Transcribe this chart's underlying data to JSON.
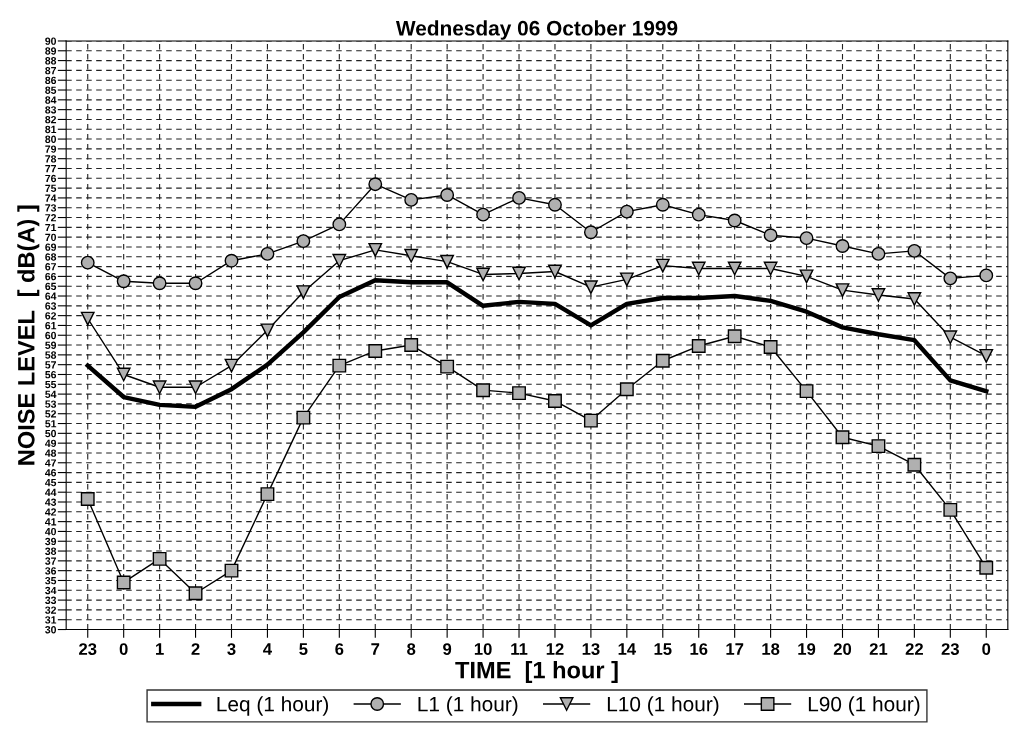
{
  "chart_data": {
    "type": "line",
    "title": "Wednesday 06 October 1999",
    "xlabel": "TIME  [1 hour ]",
    "ylabel": "NOISE LEVEL  [ dB(A) ]",
    "categories": [
      "23",
      "0",
      "1",
      "2",
      "3",
      "4",
      "5",
      "6",
      "7",
      "8",
      "9",
      "10",
      "11",
      "12",
      "13",
      "14",
      "15",
      "16",
      "17",
      "18",
      "19",
      "20",
      "21",
      "22",
      "23",
      "0"
    ],
    "series": [
      {
        "name": "Leq (1 hour)",
        "color": "#000000",
        "marker": "none",
        "values": [
          56.9,
          53.7,
          52.9,
          52.7,
          54.5,
          57.0,
          60.3,
          63.9,
          65.6,
          65.4,
          65.4,
          63.0,
          63.4,
          63.2,
          61.0,
          63.2,
          63.8,
          63.8,
          64.0,
          63.5,
          62.4,
          60.8,
          60.1,
          59.5,
          55.4,
          54.3
        ]
      },
      {
        "name": "L1 (1 hour)",
        "color": "#000000",
        "marker": "circle",
        "values": [
          67.4,
          65.5,
          65.3,
          65.3,
          67.6,
          68.3,
          69.6,
          71.3,
          75.4,
          73.8,
          74.3,
          72.3,
          74.0,
          73.3,
          70.5,
          72.6,
          73.3,
          72.3,
          71.7,
          70.2,
          69.9,
          69.1,
          68.3,
          68.6,
          65.8,
          66.1
        ]
      },
      {
        "name": "L10 (1 hour)",
        "color": "#000000",
        "marker": "triangle",
        "values": [
          61.7,
          56.0,
          54.7,
          54.7,
          56.9,
          60.5,
          64.4,
          67.6,
          68.7,
          68.1,
          67.5,
          66.2,
          66.3,
          66.5,
          64.9,
          65.7,
          67.1,
          66.8,
          66.8,
          66.8,
          66.0,
          64.6,
          64.1,
          63.7,
          59.8,
          57.9
        ]
      },
      {
        "name": "L90 (1 hour)",
        "color": "#000000",
        "marker": "square",
        "values": [
          43.3,
          34.8,
          37.2,
          33.7,
          36.0,
          43.8,
          51.6,
          56.9,
          58.4,
          59.0,
          56.8,
          54.4,
          54.1,
          53.3,
          51.3,
          54.5,
          57.4,
          58.9,
          59.9,
          58.8,
          54.3,
          49.6,
          48.7,
          46.8,
          42.2,
          36.3
        ]
      }
    ],
    "ylim": [
      30,
      90
    ],
    "yticks": [
      30,
      31,
      32,
      33,
      34,
      35,
      36,
      37,
      38,
      39,
      40,
      41,
      42,
      43,
      44,
      45,
      46,
      47,
      48,
      49,
      50,
      51,
      52,
      53,
      54,
      55,
      56,
      57,
      58,
      59,
      60,
      61,
      62,
      63,
      64,
      65,
      66,
      67,
      68,
      69,
      70,
      71,
      72,
      73,
      74,
      75,
      76,
      77,
      78,
      79,
      80,
      81,
      82,
      83,
      84,
      85,
      86,
      87,
      88,
      89,
      90
    ],
    "grid": true,
    "legend": "bottom",
    "line_style": "solid"
  }
}
